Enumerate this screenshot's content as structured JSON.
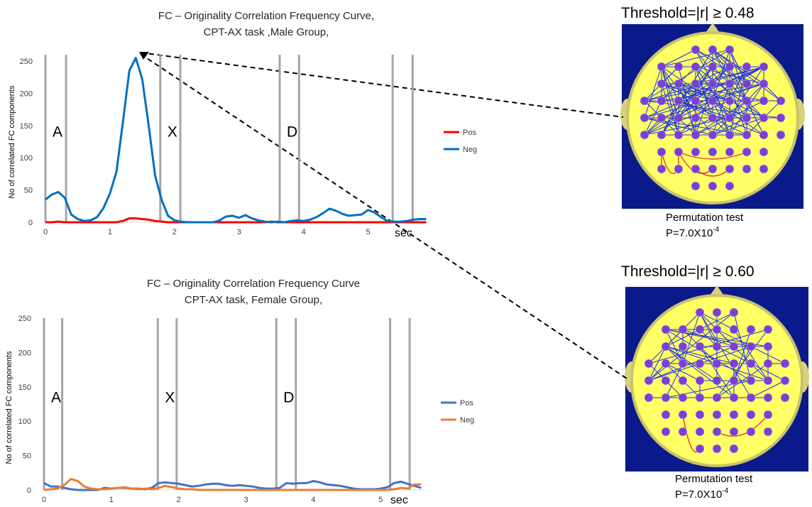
{
  "chart_data": [
    {
      "type": "line",
      "title": [
        "FC – Originality Correlation Frequency Curve,",
        "CPT-AX task ,Male Group,"
      ],
      "y_label": "No of correlated FC components",
      "x_label": "sec",
      "x": [
        0,
        0.1,
        0.2,
        0.3,
        0.4,
        0.5,
        0.6,
        0.7,
        0.8,
        0.9,
        1.0,
        1.1,
        1.2,
        1.3,
        1.4,
        1.5,
        1.6,
        1.7,
        1.8,
        1.9,
        2.0,
        2.1,
        2.2,
        2.3,
        2.4,
        2.5,
        2.6,
        2.7,
        2.8,
        2.9,
        3.0,
        3.1,
        3.2,
        3.3,
        3.4,
        3.5,
        3.6,
        3.7,
        3.8,
        3.9,
        4.0,
        4.1,
        4.2,
        4.3,
        4.4,
        4.5,
        4.6,
        4.7,
        4.8,
        4.9,
        5.0,
        5.1,
        5.2,
        5.3,
        5.4,
        5.5,
        5.6,
        5.7,
        5.8,
        5.9
      ],
      "series": [
        {
          "name": "Pos",
          "color": "#ff0000",
          "values": [
            0,
            0,
            1,
            0,
            0,
            0,
            0,
            0,
            0,
            0,
            0,
            0,
            2,
            6,
            6,
            5,
            4,
            2,
            1,
            0,
            0,
            0,
            0,
            0,
            0,
            0,
            0,
            0,
            0,
            0,
            0,
            0,
            0,
            0,
            0,
            1,
            0,
            0,
            0,
            0,
            0,
            0,
            0,
            0,
            0,
            0,
            0,
            0,
            0,
            0,
            0,
            0,
            0,
            0,
            0,
            0,
            0,
            0,
            0,
            0
          ]
        },
        {
          "name": "Neg",
          "color": "#0070c0",
          "values": [
            35,
            43,
            47,
            38,
            12,
            5,
            2,
            3,
            8,
            22,
            45,
            78,
            155,
            235,
            255,
            222,
            150,
            72,
            35,
            10,
            3,
            1,
            0,
            0,
            0,
            0,
            0,
            3,
            9,
            10,
            7,
            11,
            6,
            3,
            1,
            0,
            1,
            0,
            2,
            3,
            2,
            4,
            8,
            14,
            21,
            18,
            13,
            10,
            11,
            12,
            19,
            15,
            8,
            2,
            1,
            1,
            2,
            4,
            5,
            5
          ]
        }
      ],
      "markers": [
        0,
        0.32,
        1.78,
        2.09,
        3.63,
        3.93,
        5.38,
        5.69
      ],
      "annotations": [
        "A",
        "X",
        "D"
      ],
      "xlim": [
        0,
        5.95
      ],
      "ylim": [
        0,
        260
      ],
      "xticks": [
        0,
        1,
        2,
        3,
        4,
        5
      ],
      "yticks": [
        0,
        50,
        100,
        150,
        200,
        250
      ],
      "grid": false
    },
    {
      "type": "line",
      "title": [
        "FC – Originality Correlation Frequency Curve",
        "CPT-AX task, Female Group,"
      ],
      "y_label": "No of correlated FC components",
      "x_label": "sec",
      "x": [
        0,
        0.1,
        0.2,
        0.3,
        0.4,
        0.5,
        0.6,
        0.7,
        0.8,
        0.9,
        1.0,
        1.1,
        1.2,
        1.3,
        1.4,
        1.5,
        1.6,
        1.7,
        1.8,
        1.9,
        2.0,
        2.1,
        2.2,
        2.3,
        2.4,
        2.5,
        2.6,
        2.7,
        2.8,
        2.9,
        3.0,
        3.1,
        3.2,
        3.3,
        3.4,
        3.5,
        3.6,
        3.7,
        3.8,
        3.9,
        4.0,
        4.1,
        4.2,
        4.3,
        4.4,
        4.5,
        4.6,
        4.7,
        4.8,
        4.9,
        5.0,
        5.1,
        5.2,
        5.3,
        5.4,
        5.5,
        5.6
      ],
      "series": [
        {
          "name": "Pos",
          "color": "#4472c4",
          "values": [
            10,
            5,
            5,
            3,
            1,
            0,
            0,
            0,
            0,
            3,
            2,
            3,
            3,
            2,
            2,
            1,
            3,
            10,
            11,
            10,
            9,
            7,
            5,
            6,
            8,
            9,
            9,
            7,
            6,
            7,
            6,
            5,
            3,
            2,
            2,
            3,
            10,
            9,
            10,
            10,
            13,
            11,
            8,
            7,
            6,
            4,
            2,
            1,
            1,
            1,
            2,
            4,
            10,
            12,
            9,
            6,
            3
          ]
        },
        {
          "name": "Neg",
          "color": "#ed7d31",
          "values": [
            0,
            1,
            2,
            7,
            16,
            13,
            5,
            2,
            1,
            1,
            2,
            3,
            4,
            2,
            1,
            2,
            1,
            3,
            6,
            4,
            2,
            1,
            1,
            0,
            0,
            0,
            0,
            0,
            0,
            0,
            0,
            0,
            0,
            0,
            0,
            0,
            0,
            0,
            0,
            0,
            0,
            0,
            0,
            0,
            0,
            0,
            0,
            0,
            0,
            0,
            0,
            0,
            1,
            3,
            2,
            8,
            8
          ]
        }
      ],
      "markers": [
        0,
        0.27,
        1.69,
        1.97,
        3.45,
        3.74,
        5.14,
        5.43
      ],
      "annotations": [
        "A",
        "X",
        "D"
      ],
      "xlim": [
        0,
        5.65
      ],
      "ylim": [
        0,
        250
      ],
      "xticks": [
        0,
        1,
        2,
        3,
        4,
        5
      ],
      "yticks": [
        0,
        50,
        100,
        150,
        200,
        250
      ],
      "grid": false
    }
  ],
  "panels": [
    {
      "threshold": "Threshold=|r| ≥ 0.48",
      "test": "Permutation test",
      "p_value": "P=7.0X10",
      "exponent": "-4"
    },
    {
      "threshold": "Threshold=|r| ≥ 0.60",
      "test": "Permutation test",
      "p_value": "P=7.0X10",
      "exponent": "-4"
    }
  ]
}
